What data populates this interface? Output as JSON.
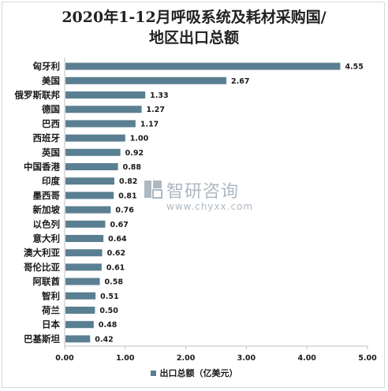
{
  "title": "2020年1-12月呼吸系统及耗材采购国/地区出口总额",
  "watermark": {
    "brand": "智研咨询",
    "url": "www.chyxx.com"
  },
  "colors": {
    "bar": "#5b7f92",
    "axis": "#bfbfbf"
  },
  "chart_data": {
    "type": "bar",
    "orientation": "horizontal",
    "categories": [
      "匈牙利",
      "美国",
      "俄罗斯联邦",
      "德国",
      "巴西",
      "西班牙",
      "英国",
      "中国香港",
      "印度",
      "墨西哥",
      "新加坡",
      "以色列",
      "意大利",
      "澳大利亚",
      "哥伦比亚",
      "阿联酋",
      "智利",
      "荷兰",
      "日本",
      "巴基斯坦"
    ],
    "series": [
      {
        "name": "出口总额（亿美元）",
        "values": [
          4.55,
          2.67,
          1.33,
          1.27,
          1.17,
          1.0,
          0.92,
          0.88,
          0.82,
          0.81,
          0.76,
          0.67,
          0.64,
          0.62,
          0.61,
          0.58,
          0.51,
          0.5,
          0.48,
          0.42
        ]
      }
    ],
    "value_labels": [
      "4.55",
      "2.67",
      "1.33",
      "1.27",
      "1.17",
      "1.00",
      "0.92",
      "0.88",
      "0.82",
      "0.81",
      "0.76",
      "0.67",
      "0.64",
      "0.62",
      "0.61",
      "0.58",
      "0.51",
      "0.50",
      "0.48",
      "0.42"
    ],
    "x_ticks": [
      "0.00",
      "1.00",
      "2.00",
      "3.00",
      "4.00",
      "5.00"
    ],
    "xlim": [
      0,
      5
    ],
    "grid": false,
    "legend": "bottom-center"
  }
}
